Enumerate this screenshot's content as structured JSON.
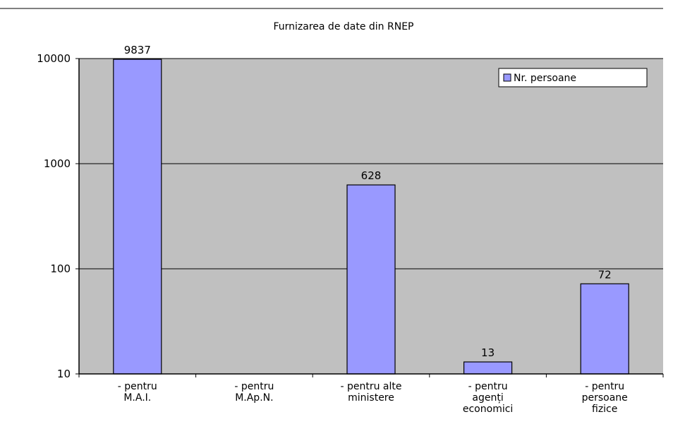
{
  "chart_data": {
    "type": "bar",
    "title": "Furnizarea de date din RNEP",
    "categories": [
      [
        "- pentru",
        "M.A.I."
      ],
      [
        "- pentru",
        "M.Ap.N."
      ],
      [
        "- pentru alte",
        "ministere"
      ],
      [
        "- pentru",
        "agenți",
        "economici"
      ],
      [
        "- pentru",
        "persoane",
        "fizice"
      ]
    ],
    "series": [
      {
        "name": "Nr. persoane",
        "values": [
          9837,
          null,
          628,
          13,
          72
        ],
        "color": "#9999ff"
      }
    ],
    "data_labels": [
      "9837",
      "",
      "628",
      "13",
      "72"
    ],
    "y_scale": "log",
    "ylim": [
      10,
      10000
    ],
    "y_ticks": [
      10,
      100,
      1000,
      10000
    ],
    "y_tick_labels": [
      "10",
      "100",
      "1000",
      "10000"
    ],
    "grid": true,
    "legend_position": "top-right",
    "plot_background": "#c0c0c0"
  }
}
